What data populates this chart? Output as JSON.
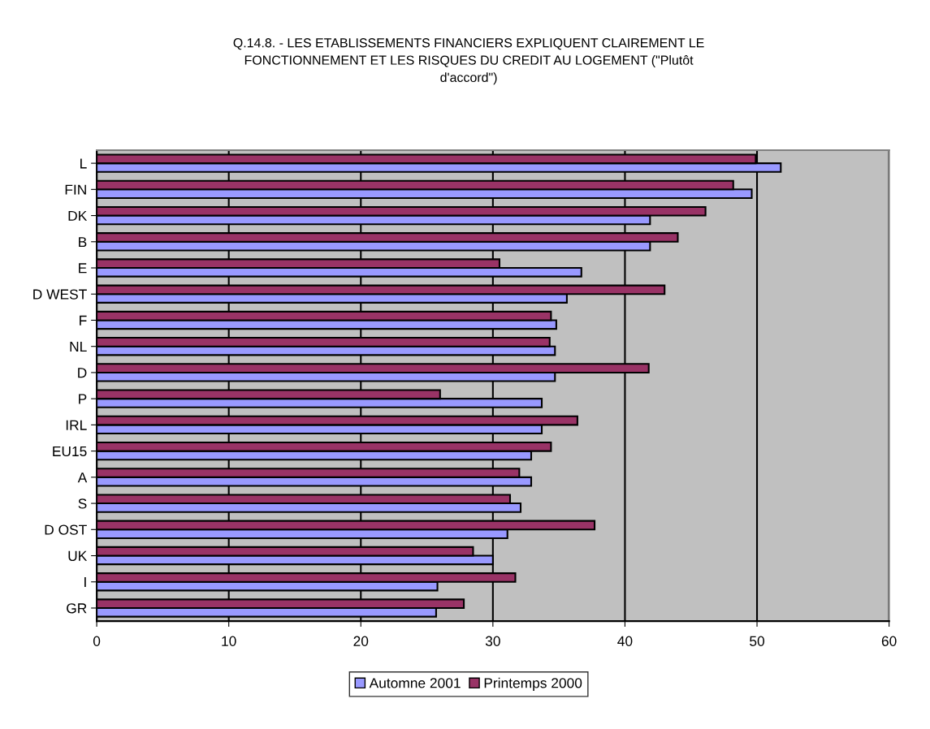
{
  "chart_data": {
    "type": "bar",
    "orientation": "horizontal",
    "title": "Q.14.8. - LES ETABLISSEMENTS FINANCIERS EXPLIQUENT CLAIREMENT LE\nFONCTIONNEMENT ET LES RISQUES DU CREDIT AU LOGEMENT (\"Plutôt\nd'accord\")",
    "categories": [
      "L",
      "FIN",
      "DK",
      "B",
      "E",
      "D WEST",
      "F",
      "NL",
      "D",
      "P",
      "IRL",
      "EU15",
      "A",
      "S",
      "D OST",
      "UK",
      "I",
      "GR"
    ],
    "series": [
      {
        "name": "Automne 2001",
        "color": "#9999ff",
        "values": [
          51.8,
          49.6,
          41.9,
          41.9,
          36.7,
          35.6,
          34.8,
          34.7,
          34.7,
          33.7,
          33.7,
          32.9,
          32.9,
          32.1,
          31.1,
          30.0,
          25.8,
          25.7
        ]
      },
      {
        "name": "Printemps 2000",
        "color": "#993366",
        "values": [
          49.9,
          48.2,
          46.1,
          44.0,
          30.5,
          43.0,
          34.4,
          34.3,
          41.8,
          26.0,
          36.4,
          34.4,
          32.0,
          31.3,
          37.7,
          28.5,
          31.7,
          27.8
        ]
      }
    ],
    "xlim": [
      0,
      60
    ],
    "xticks": [
      0,
      10,
      20,
      30,
      40,
      50,
      60
    ],
    "grid": "x",
    "legend": "bottom"
  }
}
